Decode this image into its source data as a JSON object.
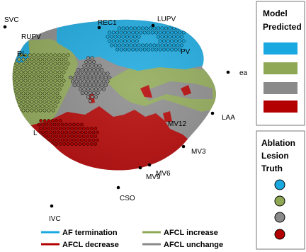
{
  "colors": {
    "af_termination": "#19a9e0",
    "afcl_decrease": "#b30000",
    "afcl_increase": "#8fa855",
    "afcl_unchange": "#8a8a8a",
    "dot_outline": "#000000"
  },
  "landmarks": {
    "svc": "SVC",
    "rupv": "RUPV",
    "rl": "RL",
    "rec1": "REC1",
    "lupv": "LUPV",
    "lupv_partial": "PV",
    "ea": "ea",
    "laa": "LAA",
    "mv12": "MV12",
    "mv3": "MV3",
    "mv6": "MV6",
    "mv9": "MV9",
    "cso": "CSO",
    "ivc": "IVC",
    "l_partial": "L"
  },
  "model_box": {
    "title_line1": "Model",
    "title_line2": "Predicted",
    "swatches": [
      "af_termination",
      "afcl_increase",
      "afcl_unchange",
      "afcl_decrease"
    ]
  },
  "truth_box": {
    "title_line1": "Ablation",
    "title_line2": "Lesion",
    "title_line3": "Truth",
    "markers": [
      "af_termination",
      "afcl_increase",
      "afcl_unchange",
      "afcl_decrease"
    ]
  },
  "legend": {
    "af_termination": "AF termination",
    "afcl_increase": "AFCL increase",
    "afcl_decrease": "AFCL decrease",
    "afcl_unchange": "AFCL unchange"
  }
}
